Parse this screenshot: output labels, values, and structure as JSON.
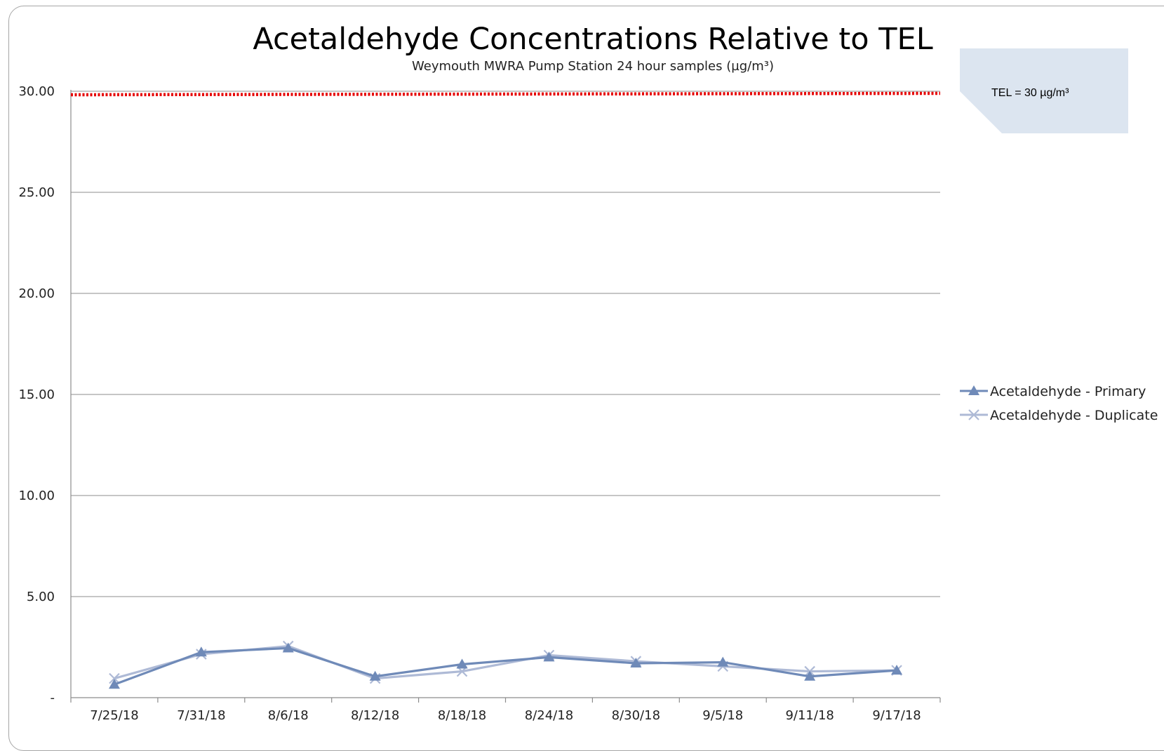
{
  "chart_data": {
    "type": "line",
    "title": "Acetaldehyde Concentrations Relative to TEL",
    "subtitle": "Weymouth  MWRA Pump Station 24 hour samples  (µg/m³)",
    "x": [
      "7/25/18",
      "7/31/18",
      "8/6/18",
      "8/12/18",
      "8/18/18",
      "8/24/18",
      "8/30/18",
      "9/5/18",
      "9/11/18",
      "9/17/18"
    ],
    "y_ticks": [
      "-",
      "5.00",
      "10.00",
      "15.00",
      "20.00",
      "25.00",
      "30.00"
    ],
    "y_tick_values": [
      0,
      5,
      10,
      15,
      20,
      25,
      30
    ],
    "ylim": [
      0,
      30
    ],
    "grid": true,
    "legend_position": "right",
    "series": [
      {
        "name": "Acetaldehyde - Primary",
        "marker": "triangle",
        "color": "#6f8ab8",
        "values": [
          0.65,
          2.25,
          2.45,
          1.05,
          1.65,
          2.0,
          1.7,
          1.75,
          1.05,
          1.35
        ]
      },
      {
        "name": "Acetaldehyde - Duplicate",
        "marker": "x",
        "color": "#aebad6",
        "values": [
          0.95,
          2.15,
          2.55,
          0.95,
          1.3,
          2.1,
          1.8,
          1.55,
          1.3,
          1.35
        ]
      }
    ],
    "threshold": {
      "value": 30,
      "color": "#e60000",
      "style": "dotted"
    },
    "annotation": {
      "text": "TEL = 30 µg/m³",
      "fill": "#dce5f0"
    }
  }
}
